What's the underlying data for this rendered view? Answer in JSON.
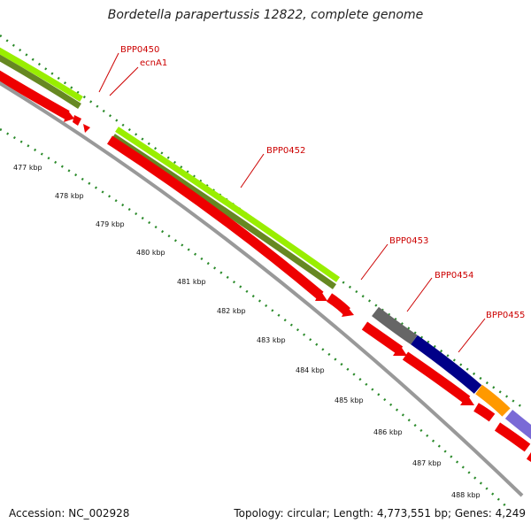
{
  "title": "Bordetella parapertussis 12822, complete genome",
  "accession_text": "Accession: NC_002928",
  "topology_text": "Topology: circular; Length: 4,773,551 bp; Genes: 4,249",
  "colors": {
    "cds_light": "#99ee00",
    "cds_dark": "#668822",
    "gene_red": "#ee0000",
    "backbone": "#999999",
    "tick_green": "#2a8a2a",
    "label_red": "#cc0000",
    "dark_gray": "#666666",
    "navy": "#000088",
    "orange": "#ff9900",
    "lavender": "#7a6ad6"
  },
  "ruler_labels": [
    "477 kbp",
    "478 kbp",
    "479 kbp",
    "480 kbp",
    "481 kbp",
    "482 kbp",
    "483 kbp",
    "484 kbp",
    "485 kbp",
    "486 kbp",
    "487 kbp",
    "488 kbp"
  ],
  "gene_labels": [
    "BPP0450",
    "ecnA1",
    "BPP0452",
    "BPP0453",
    "BPP0454",
    "BPP0455"
  ]
}
